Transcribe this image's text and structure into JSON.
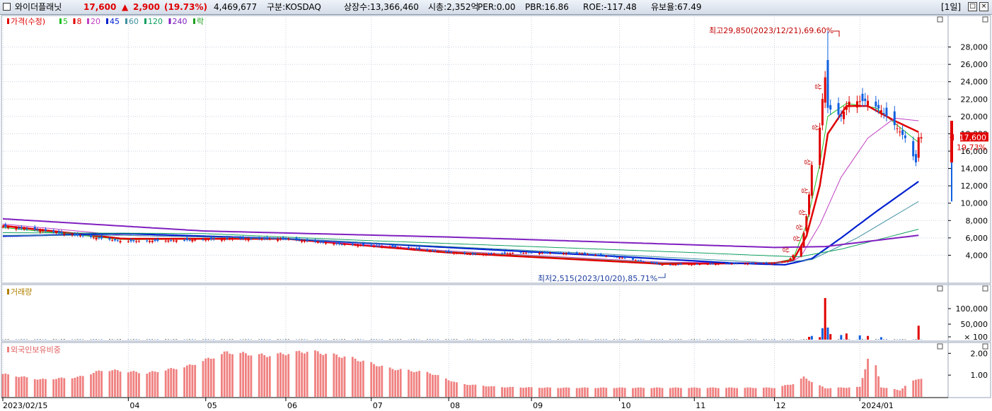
{
  "header": {
    "name": "와이더플래닛",
    "price": "17,600",
    "change_arrow": "▲",
    "change": "2,900",
    "change_pct": "(19.73%)",
    "volume": "4,469,677",
    "market": "구분:KOSDAQ",
    "shares": "상장수:13,366,460",
    "mktcap": "시총:2,352억",
    "per": "PER:0.00",
    "pbr": "PBR:16.86",
    "roe": "ROE:-117.48",
    "float": "유보율:67.49",
    "period": "[1일]"
  },
  "colors": {
    "up": "#e00000",
    "down": "#1060e0",
    "ma5": "#20c020",
    "ma8": "#e00000",
    "ma20": "#c040c0",
    "ma45": "#0020d0",
    "ma60": "#4090a0",
    "ma120": "#10a060",
    "ma240": "#8020c0",
    "volume_legend": "#b08000",
    "foreign_bar": "#f08080"
  },
  "chart_data": [
    {
      "type": "line",
      "panel": "price",
      "legend": [
        {
          "label": "가격(수정)",
          "color": "#e00000"
        },
        {
          "label": "5",
          "color": "#20c020"
        },
        {
          "label": "8",
          "color": "#e00000"
        },
        {
          "label": "20",
          "color": "#c040c0"
        },
        {
          "label": "45",
          "color": "#0020d0"
        },
        {
          "label": "60",
          "color": "#4090a0"
        },
        {
          "label": "120",
          "color": "#10a060"
        },
        {
          "label": "240",
          "color": "#8020c0"
        },
        {
          "label": "락",
          "color": "#20a020"
        }
      ],
      "y_ticks": [
        "28,000",
        "26,000",
        "24,000",
        "22,000",
        "20,000",
        "18,000",
        "16,000",
        "14,000",
        "12,000",
        "10,000",
        "8,000",
        "6,000",
        "4,000"
      ],
      "y_tick_values": [
        28000,
        26000,
        24000,
        22000,
        20000,
        18000,
        16000,
        14000,
        12000,
        10000,
        8000,
        6000,
        4000
      ],
      "ylim": [
        2000,
        30000
      ],
      "x_ticks": [
        "2023/02/15",
        "04",
        "05",
        "06",
        "07",
        "08",
        "09",
        "10",
        "11",
        "12",
        "2024/01"
      ],
      "x_tick_dates": [
        "2023-02-15",
        "2023-04-03",
        "2023-05-02",
        "2023-06-01",
        "2023-07-03",
        "2023-08-01",
        "2023-09-01",
        "2023-10-04",
        "2023-11-01",
        "2023-12-01",
        "2024-01-02"
      ],
      "x_range": [
        "2023-02-15",
        "2024-01-25"
      ],
      "current_price_label": "17,600",
      "current_change_label": "19.73%",
      "high_annotation": "최고29,850(2023/12/21),69.60%",
      "low_annotation": "최저2,515(2023/10/20),85.71%",
      "limit_up_marks": [
        "상",
        "상",
        "상",
        "상",
        "상",
        "상",
        "상",
        "상"
      ],
      "price_anchors": [
        [
          "2023-02-15",
          7300
        ],
        [
          "2023-03-01",
          6900
        ],
        [
          "2023-03-15",
          6300
        ],
        [
          "2023-04-01",
          5600
        ],
        [
          "2023-04-20",
          5700
        ],
        [
          "2023-05-10",
          5900
        ],
        [
          "2023-06-01",
          5900
        ],
        [
          "2023-06-20",
          5300
        ],
        [
          "2023-07-10",
          5000
        ],
        [
          "2023-07-30",
          4400
        ],
        [
          "2023-08-10",
          4100
        ],
        [
          "2023-09-01",
          4300
        ],
        [
          "2023-09-20",
          4200
        ],
        [
          "2023-10-05",
          3700
        ],
        [
          "2023-10-20",
          2900
        ],
        [
          "2023-11-10",
          3000
        ],
        [
          "2023-12-01",
          3100
        ],
        [
          "2023-12-06",
          3300
        ],
        [
          "2023-12-08",
          4000
        ],
        [
          "2023-12-11",
          5100
        ],
        [
          "2023-12-12",
          6600
        ],
        [
          "2023-12-13",
          8500
        ],
        [
          "2023-12-14",
          11000
        ],
        [
          "2023-12-15",
          14400
        ],
        [
          "2023-12-18",
          18700
        ],
        [
          "2023-12-19",
          22000
        ],
        [
          "2023-12-20",
          24500
        ],
        [
          "2023-12-21",
          21000
        ],
        [
          "2023-12-26",
          20000
        ],
        [
          "2023-12-29",
          21700
        ],
        [
          "2024-01-05",
          21800
        ],
        [
          "2024-01-10",
          20700
        ],
        [
          "2024-01-15",
          19000
        ],
        [
          "2024-01-19",
          17500
        ],
        [
          "2024-01-23",
          14700
        ],
        [
          "2024-01-24",
          17600
        ]
      ],
      "ma_anchors": {
        "ma5": [
          [
            "2023-02-15",
            7200
          ],
          [
            "2023-04-01",
            5800
          ],
          [
            "2023-06-01",
            5900
          ],
          [
            "2023-08-01",
            4400
          ],
          [
            "2023-10-20",
            3100
          ],
          [
            "2023-12-01",
            3100
          ],
          [
            "2023-12-08",
            3600
          ],
          [
            "2023-12-13",
            7500
          ],
          [
            "2023-12-18",
            14500
          ],
          [
            "2023-12-21",
            20000
          ],
          [
            "2023-12-28",
            21500
          ],
          [
            "2024-01-08",
            21000
          ],
          [
            "2024-01-18",
            18500
          ],
          [
            "2024-01-24",
            17000
          ]
        ],
        "ma8": [
          [
            "2023-02-15",
            7400
          ],
          [
            "2023-04-01",
            5900
          ],
          [
            "2023-06-01",
            5900
          ],
          [
            "2023-08-01",
            4300
          ],
          [
            "2023-10-20",
            3000
          ],
          [
            "2023-12-01",
            3100
          ],
          [
            "2023-12-08",
            3400
          ],
          [
            "2023-12-13",
            6200
          ],
          [
            "2023-12-18",
            12000
          ],
          [
            "2023-12-21",
            18000
          ],
          [
            "2023-12-28",
            21200
          ],
          [
            "2024-01-05",
            21200
          ],
          [
            "2024-01-15",
            19500
          ],
          [
            "2024-01-24",
            18200
          ]
        ],
        "ma20": [
          [
            "2023-02-15",
            7600
          ],
          [
            "2023-04-01",
            6300
          ],
          [
            "2023-06-01",
            5900
          ],
          [
            "2023-08-01",
            4500
          ],
          [
            "2023-10-20",
            3200
          ],
          [
            "2023-12-01",
            3100
          ],
          [
            "2023-12-10",
            3400
          ],
          [
            "2023-12-18",
            7500
          ],
          [
            "2023-12-26",
            13000
          ],
          [
            "2024-01-05",
            17500
          ],
          [
            "2024-01-15",
            19800
          ],
          [
            "2024-01-24",
            19500
          ]
        ],
        "ma45": [
          [
            "2023-02-15",
            6200
          ],
          [
            "2023-04-01",
            6500
          ],
          [
            "2023-06-01",
            5900
          ],
          [
            "2023-08-01",
            4900
          ],
          [
            "2023-10-01",
            3900
          ],
          [
            "2023-11-15",
            3100
          ],
          [
            "2023-12-05",
            2900
          ],
          [
            "2023-12-15",
            3600
          ],
          [
            "2023-12-26",
            6000
          ],
          [
            "2024-01-08",
            9000
          ],
          [
            "2024-01-24",
            12500
          ]
        ],
        "ma60": [
          [
            "2023-02-15",
            6300
          ],
          [
            "2023-04-01",
            6300
          ],
          [
            "2023-06-01",
            5900
          ],
          [
            "2023-08-01",
            5000
          ],
          [
            "2023-10-01",
            4100
          ],
          [
            "2023-12-01",
            3100
          ],
          [
            "2023-12-15",
            3500
          ],
          [
            "2024-01-01",
            6000
          ],
          [
            "2024-01-24",
            10200
          ]
        ],
        "ma120": [
          [
            "2023-02-15",
            6600
          ],
          [
            "2023-05-01",
            6500
          ],
          [
            "2023-07-01",
            5700
          ],
          [
            "2023-09-01",
            5000
          ],
          [
            "2023-11-01",
            4300
          ],
          [
            "2023-12-10",
            3800
          ],
          [
            "2023-12-26",
            4700
          ],
          [
            "2024-01-24",
            7000
          ]
        ],
        "ma240": [
          [
            "2023-02-15",
            8200
          ],
          [
            "2023-05-01",
            6800
          ],
          [
            "2023-08-01",
            6100
          ],
          [
            "2023-10-01",
            5500
          ],
          [
            "2023-12-01",
            4900
          ],
          [
            "2023-12-20",
            5000
          ],
          [
            "2024-01-24",
            6300
          ]
        ]
      },
      "grid": true
    },
    {
      "type": "bar",
      "panel": "volume",
      "legend": "거래량",
      "y_ticks": [
        "100,000",
        "50,000",
        "× 100"
      ],
      "y_tick_values": [
        100000,
        50000,
        0
      ],
      "ylim": [
        0,
        150000
      ],
      "unit": "× 100",
      "spikes": [
        [
          "2023-12-14",
          9000
        ],
        [
          "2023-12-15",
          12000
        ],
        [
          "2023-12-18",
          8000
        ],
        [
          "2023-12-19",
          37000
        ],
        [
          "2023-12-20",
          134000
        ],
        [
          "2023-12-21",
          39000
        ],
        [
          "2023-12-22",
          18000
        ],
        [
          "2023-12-26",
          15000
        ],
        [
          "2023-12-28",
          20000
        ],
        [
          "2024-01-02",
          14000
        ],
        [
          "2024-01-05",
          12000
        ],
        [
          "2024-01-10",
          8000
        ],
        [
          "2024-01-24",
          45000
        ]
      ]
    },
    {
      "type": "bar",
      "panel": "foreign_ownership",
      "legend": "외국인보유비중",
      "y_ticks": [
        "2.00",
        "1.00"
      ],
      "y_tick_values": [
        2.0,
        1.0
      ],
      "ylim": [
        0,
        2.4
      ],
      "series_anchors": [
        [
          "2023-02-15",
          1.05
        ],
        [
          "2023-03-01",
          0.8
        ],
        [
          "2023-03-15",
          0.9
        ],
        [
          "2023-03-25",
          1.25
        ],
        [
          "2023-04-10",
          1.1
        ],
        [
          "2023-04-25",
          1.4
        ],
        [
          "2023-05-10",
          2.05
        ],
        [
          "2023-05-25",
          1.9
        ],
        [
          "2023-06-10",
          2.1
        ],
        [
          "2023-06-25",
          1.8
        ],
        [
          "2023-07-10",
          1.3
        ],
        [
          "2023-07-25",
          1.1
        ],
        [
          "2023-08-05",
          0.6
        ],
        [
          "2023-08-20",
          0.45
        ],
        [
          "2023-09-10",
          0.42
        ],
        [
          "2023-10-01",
          0.42
        ],
        [
          "2023-11-01",
          0.42
        ],
        [
          "2023-12-01",
          0.42
        ],
        [
          "2023-12-08",
          0.6
        ],
        [
          "2023-12-12",
          0.9
        ],
        [
          "2023-12-15",
          0.7
        ],
        [
          "2023-12-20",
          0.4
        ],
        [
          "2024-01-02",
          0.45
        ],
        [
          "2024-01-05",
          1.75
        ],
        [
          "2024-01-08",
          1.4
        ],
        [
          "2024-01-10",
          0.45
        ],
        [
          "2024-01-17",
          0.3
        ],
        [
          "2024-01-20",
          0.6
        ],
        [
          "2024-01-24",
          0.85
        ]
      ]
    }
  ]
}
